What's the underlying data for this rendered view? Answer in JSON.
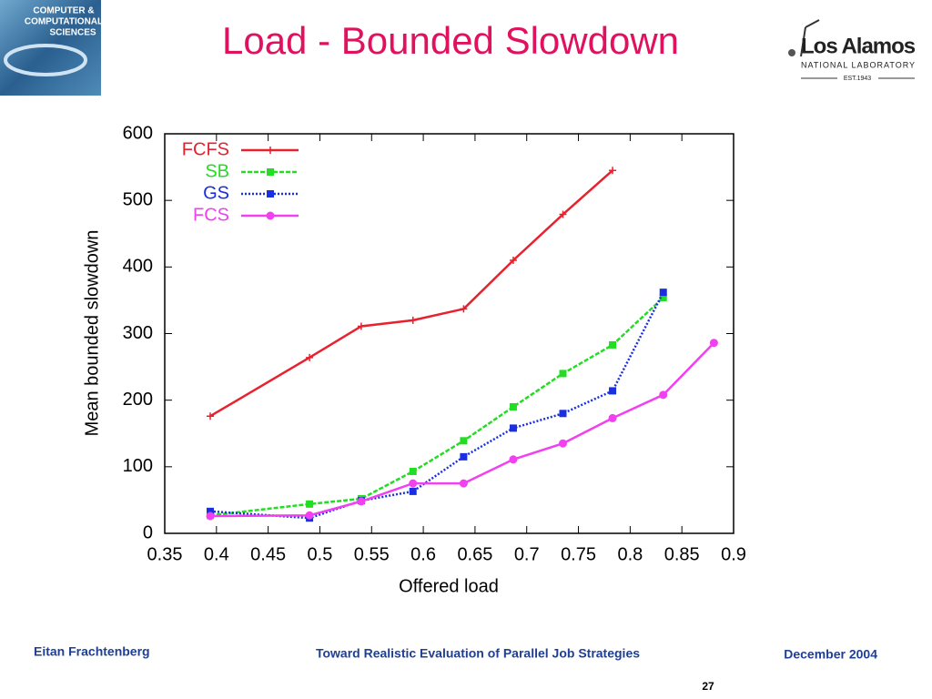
{
  "chart_data": {
    "type": "line",
    "title": "Load - Bounded Slowdown",
    "xlabel": "Offered load",
    "ylabel": "Mean bounded slowdown",
    "xlim": [
      0.35,
      0.9
    ],
    "xticks": [
      0.35,
      0.4,
      0.45,
      0.5,
      0.55,
      0.6,
      0.65,
      0.7,
      0.75,
      0.8,
      0.85,
      0.9
    ],
    "ylim": [
      0,
      600
    ],
    "yticks": [
      0,
      100,
      200,
      300,
      400,
      500,
      600
    ],
    "grid": false,
    "legend": "upper left",
    "series": [
      {
        "name": "FCFS",
        "color": "#e8212f",
        "line_style": "solid",
        "marker": "plus",
        "x": [
          0.394,
          0.49,
          0.54,
          0.59,
          0.639,
          0.687,
          0.735,
          0.783
        ],
        "values": [
          176,
          264,
          311,
          320,
          337,
          410,
          479,
          545
        ]
      },
      {
        "name": "SB",
        "color": "#22dd22",
        "line_style": "dashed",
        "marker": "square",
        "x": [
          0.394,
          0.49,
          0.54,
          0.59,
          0.639,
          0.687,
          0.735,
          0.783,
          0.832
        ],
        "values": [
          27,
          44,
          52,
          93,
          139,
          190,
          240,
          283,
          354
        ]
      },
      {
        "name": "GS",
        "color": "#1a2fe0",
        "line_style": "dotted",
        "marker": "square",
        "x": [
          0.394,
          0.49,
          0.54,
          0.59,
          0.639,
          0.687,
          0.735,
          0.783,
          0.832
        ],
        "values": [
          33,
          23,
          49,
          63,
          115,
          158,
          180,
          214,
          362
        ]
      },
      {
        "name": "FCS",
        "color": "#f040f0",
        "line_style": "solid",
        "marker": "circle",
        "x": [
          0.394,
          0.49,
          0.54,
          0.59,
          0.639,
          0.687,
          0.735,
          0.783,
          0.832,
          0.881
        ],
        "values": [
          26,
          27,
          48,
          75,
          75,
          111,
          135,
          173,
          208,
          286
        ]
      }
    ]
  },
  "logos": {
    "left": [
      "COMPUTER &",
      "COMPUTATIONAL",
      "SCIENCES"
    ],
    "right": {
      "name": "Los Alamos",
      "sub": "NATIONAL LABORATORY",
      "est": "EST.1943"
    }
  },
  "footer": {
    "author": "Eitan Frachtenberg",
    "talk": "Toward Realistic Evaluation of Parallel Job Strategies",
    "date": "December 2004",
    "page": "27"
  }
}
